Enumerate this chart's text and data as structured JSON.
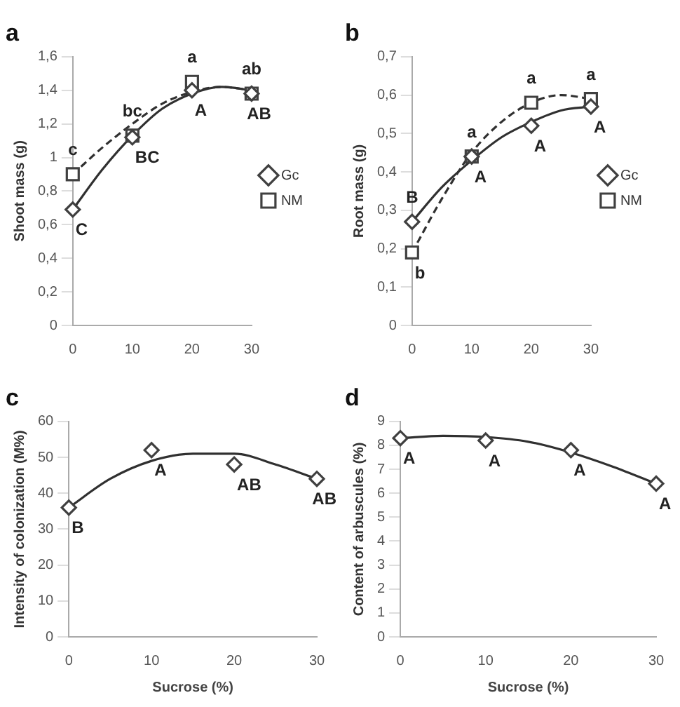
{
  "chart_data": [
    {
      "type": "scatter",
      "title": "a",
      "ylabel": "Shoot mass (g)",
      "x": [
        0,
        10,
        20,
        30
      ],
      "xlim": [
        0,
        30
      ],
      "xticks": [
        0,
        10,
        20,
        30
      ],
      "ylim": [
        0,
        1.6
      ],
      "yticks": [
        0,
        {
          "value": 0.2,
          "label": "0,2"
        },
        {
          "value": 0.4,
          "label": "0,4"
        },
        {
          "value": 0.6,
          "label": "0,6"
        },
        {
          "value": 0.8,
          "label": "0,8"
        },
        1,
        {
          "value": 1.2,
          "label": "1,2"
        },
        {
          "value": 1.4,
          "label": "1,4"
        },
        {
          "value": 1.6,
          "label": "1,6"
        }
      ],
      "grid": false,
      "legend": "right",
      "series": [
        {
          "name": "Gc",
          "color": "#404040",
          "marker": "diamond",
          "values": [
            0.69,
            1.12,
            1.4,
            1.38
          ]
        },
        {
          "name": "NM",
          "color": "#404040",
          "marker": "square",
          "values": [
            0.9,
            1.13,
            1.45,
            1.38
          ]
        },
        {
          "type": "line",
          "color": "#303030",
          "line_style": "solid",
          "marker": "none",
          "x": [
            0,
            5,
            10,
            15,
            20,
            25,
            30
          ],
          "values": [
            0.69,
            0.93,
            1.13,
            1.29,
            1.38,
            1.42,
            1.4
          ]
        },
        {
          "type": "line",
          "color": "#303030",
          "line_style": "dashed",
          "marker": "none",
          "x": [
            0,
            5,
            10,
            15,
            20,
            25,
            30
          ],
          "values": [
            0.9,
            1.06,
            1.2,
            1.32,
            1.39,
            1.42,
            1.4
          ]
        }
      ],
      "annotations": [
        {
          "text": "C",
          "x": 0,
          "y": 0.69
        },
        {
          "text": "c",
          "x": 0,
          "y": 0.9
        },
        {
          "text": "BC",
          "x": 10,
          "y": 1.12
        },
        {
          "text": "bc",
          "x": 10,
          "y": 1.13
        },
        {
          "text": "A",
          "x": 20,
          "y": 1.4
        },
        {
          "text": "a",
          "x": 20,
          "y": 1.45
        },
        {
          "text": "AB",
          "x": 30,
          "y": 1.38
        },
        {
          "text": "ab",
          "x": 30,
          "y": 1.38
        }
      ]
    },
    {
      "type": "scatter",
      "title": "b",
      "ylabel": "Root mass (g)",
      "x": [
        0,
        10,
        20,
        30
      ],
      "xlim": [
        0,
        30
      ],
      "xticks": [
        0,
        10,
        20,
        30
      ],
      "ylim": [
        0,
        0.7
      ],
      "yticks": [
        0,
        {
          "value": 0.1,
          "label": "0,1"
        },
        {
          "value": 0.2,
          "label": "0,2"
        },
        {
          "value": 0.3,
          "label": "0,3"
        },
        {
          "value": 0.4,
          "label": "0,4"
        },
        {
          "value": 0.5,
          "label": "0,5"
        },
        {
          "value": 0.6,
          "label": "0,6"
        },
        {
          "value": 0.7,
          "label": "0,7"
        }
      ],
      "grid": false,
      "legend": "right",
      "series": [
        {
          "name": "Gc",
          "color": "#404040",
          "marker": "diamond",
          "values": [
            0.27,
            0.44,
            0.52,
            0.57
          ]
        },
        {
          "name": "NM",
          "color": "#404040",
          "marker": "square",
          "values": [
            0.19,
            0.44,
            0.58,
            0.59
          ]
        },
        {
          "type": "line",
          "color": "#303030",
          "line_style": "solid",
          "marker": "none",
          "x": [
            0,
            5,
            10,
            15,
            20,
            25,
            30
          ],
          "values": [
            0.27,
            0.36,
            0.43,
            0.49,
            0.53,
            0.56,
            0.57
          ]
        },
        {
          "type": "line",
          "color": "#303030",
          "line_style": "dashed",
          "marker": "none",
          "x": [
            0,
            5,
            10,
            15,
            20,
            25,
            30
          ],
          "values": [
            0.19,
            0.33,
            0.45,
            0.53,
            0.58,
            0.6,
            0.59
          ]
        }
      ],
      "annotations": [
        {
          "text": "B",
          "x": 0,
          "y": 0.27
        },
        {
          "text": "b",
          "x": 0,
          "y": 0.19
        },
        {
          "text": "A",
          "x": 10,
          "y": 0.44
        },
        {
          "text": "a",
          "x": 10,
          "y": 0.44
        },
        {
          "text": "A",
          "x": 20,
          "y": 0.52
        },
        {
          "text": "a",
          "x": 20,
          "y": 0.58
        },
        {
          "text": "A",
          "x": 30,
          "y": 0.57
        },
        {
          "text": "a",
          "x": 30,
          "y": 0.59
        }
      ]
    },
    {
      "type": "scatter",
      "xlabel": "Sucrose (%)",
      "title": "c",
      "ylabel": "Intensity of colonization (M%)",
      "x": [
        0,
        10,
        20,
        30
      ],
      "xlim": [
        0,
        30
      ],
      "xticks": [
        0,
        10,
        20,
        30
      ],
      "ylim": [
        0,
        60
      ],
      "yticks": [
        0,
        10,
        20,
        30,
        40,
        50,
        60
      ],
      "grid": false,
      "series": [
        {
          "color": "#404040",
          "marker": "diamond",
          "values": [
            36,
            52,
            48,
            44
          ]
        },
        {
          "type": "line",
          "color": "#303030",
          "line_style": "solid",
          "marker": "none",
          "x": [
            0,
            5,
            10,
            15,
            20,
            25,
            30
          ],
          "values": [
            36,
            44,
            49,
            51,
            51,
            48,
            44
          ]
        }
      ],
      "annotations": [
        {
          "text": "B",
          "x": 0,
          "y": 36
        },
        {
          "text": "A",
          "x": 10,
          "y": 52
        },
        {
          "text": "AB",
          "x": 20,
          "y": 48
        },
        {
          "text": "AB",
          "x": 30,
          "y": 44
        }
      ]
    },
    {
      "type": "scatter",
      "xlabel": "Sucrose (%)",
      "title": "d",
      "ylabel": "Content of arbuscules (%)",
      "x": [
        0,
        10,
        20,
        30
      ],
      "xlim": [
        0,
        30
      ],
      "xticks": [
        0,
        10,
        20,
        30
      ],
      "ylim": [
        0,
        9
      ],
      "yticks": [
        0,
        1,
        2,
        3,
        4,
        5,
        6,
        7,
        8,
        9
      ],
      "grid": false,
      "series": [
        {
          "color": "#404040",
          "marker": "diamond",
          "values": [
            8.3,
            8.2,
            7.8,
            6.4
          ]
        },
        {
          "type": "line",
          "color": "#303030",
          "line_style": "solid",
          "marker": "none",
          "x": [
            0,
            5,
            10,
            15,
            20,
            25,
            30
          ],
          "values": [
            8.3,
            8.4,
            8.35,
            8.15,
            7.7,
            7.1,
            6.4
          ]
        }
      ],
      "annotations": [
        {
          "text": "A",
          "x": 0,
          "y": 8.3
        },
        {
          "text": "A",
          "x": 10,
          "y": 8.2
        },
        {
          "text": "A",
          "x": 20,
          "y": 7.8
        },
        {
          "text": "A",
          "x": 30,
          "y": 6.4
        }
      ]
    }
  ]
}
